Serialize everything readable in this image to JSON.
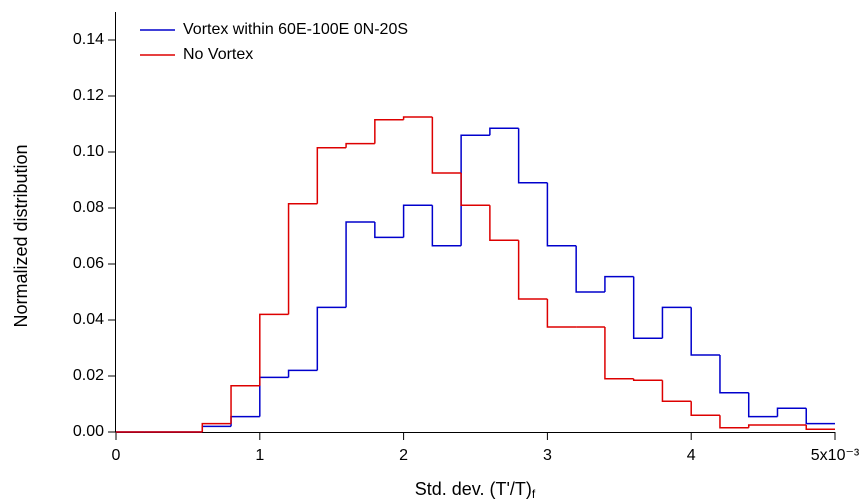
{
  "chart_data": {
    "type": "histogram",
    "x_label": {
      "text": "Std. dev. (T'/T)",
      "subscript": "f"
    },
    "y_label": "Normalized distribution",
    "bins": [
      0,
      0.2,
      0.4,
      0.6,
      0.8,
      1,
      1.2,
      1.4,
      1.6,
      1.8,
      2,
      2.2,
      2.4,
      2.6,
      2.8,
      3,
      3.2,
      3.4,
      3.6,
      3.8,
      4,
      4.2,
      4.4,
      4.6,
      4.8,
      5
    ],
    "series": [
      {
        "name": "Vortex within 60E-100E 0N-20S",
        "color": "#0000cc",
        "values": [
          0,
          0,
          0,
          0.002,
          0.0055,
          0.0195,
          0.022,
          0.0445,
          0.075,
          0.0695,
          0.081,
          0.0665,
          0.106,
          0.1085,
          0.089,
          0.0665,
          0.05,
          0.0555,
          0.0335,
          0.0445,
          0.0275,
          0.014,
          0.0055,
          0.0085,
          0.003
        ]
      },
      {
        "name": "No Vortex",
        "color": "#dd0000",
        "values": [
          0,
          0,
          0,
          0.003,
          0.0165,
          0.042,
          0.0815,
          0.1015,
          0.103,
          0.1115,
          0.1125,
          0.0925,
          0.081,
          0.0685,
          0.0475,
          0.0375,
          0.0375,
          0.019,
          0.0185,
          0.011,
          0.006,
          0.0015,
          0.0025,
          0.0025,
          0.001
        ]
      }
    ],
    "xlim": [
      0,
      5
    ],
    "ylim": [
      0,
      0.15
    ],
    "xticks": [
      0,
      1,
      2,
      3,
      4,
      {
        "value": 5,
        "label": "5x10⁻³"
      }
    ],
    "yticks": [
      {
        "value": 0,
        "label": "0.00"
      },
      {
        "value": 0.02,
        "label": "0.02"
      },
      {
        "value": 0.04,
        "label": "0.04"
      },
      {
        "value": 0.06,
        "label": "0.06"
      },
      {
        "value": 0.08,
        "label": "0.08"
      },
      {
        "value": 0.1,
        "label": "0.10"
      },
      {
        "value": 0.12,
        "label": "0.12"
      },
      {
        "value": 0.14,
        "label": "0.14"
      }
    ],
    "legend": "upper left"
  }
}
